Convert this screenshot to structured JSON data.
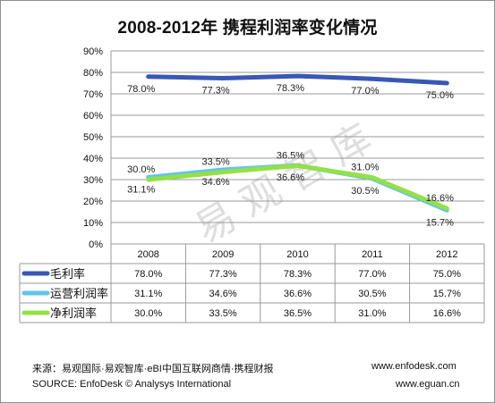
{
  "title": "2008-2012年  携程利润率变化情况",
  "watermark": "易观智库",
  "chart_data": {
    "type": "line",
    "categories": [
      "2008",
      "2009",
      "2010",
      "2011",
      "2012"
    ],
    "ylim": [
      0,
      90
    ],
    "yticks": [
      "0%",
      "10%",
      "20%",
      "30%",
      "40%",
      "50%",
      "60%",
      "70%",
      "80%",
      "90%"
    ],
    "value_format": "percent_1dp",
    "grid": true,
    "legend": "data-table",
    "series": [
      {
        "name": "毛利率",
        "color": "#3a57b5",
        "values": [
          78.0,
          77.3,
          78.3,
          77.0,
          75.0
        ],
        "labels": [
          "78.0%",
          "77.3%",
          "78.3%",
          "77.0%",
          "75.0%"
        ]
      },
      {
        "name": "运营利润率",
        "color": "#62c4ea",
        "values": [
          31.1,
          34.6,
          36.6,
          30.5,
          15.7
        ],
        "labels": [
          "31.1%",
          "34.6%",
          "36.6%",
          "30.5%",
          "15.7%"
        ]
      },
      {
        "name": "净利润率",
        "color": "#94e046",
        "values": [
          30.0,
          33.5,
          36.5,
          31.0,
          16.6
        ],
        "labels": [
          "30.0%",
          "33.5%",
          "36.5%",
          "31.0%",
          "16.6%"
        ]
      }
    ]
  },
  "footer": {
    "source_cn": "来源：易观国际·易观智库·eBI中国互联网商情·携程财报",
    "source_en": "SOURCE: EnfoDesk © Analysys International",
    "url1": "www.enfodesk.com",
    "url2": "www.eguan.cn"
  }
}
